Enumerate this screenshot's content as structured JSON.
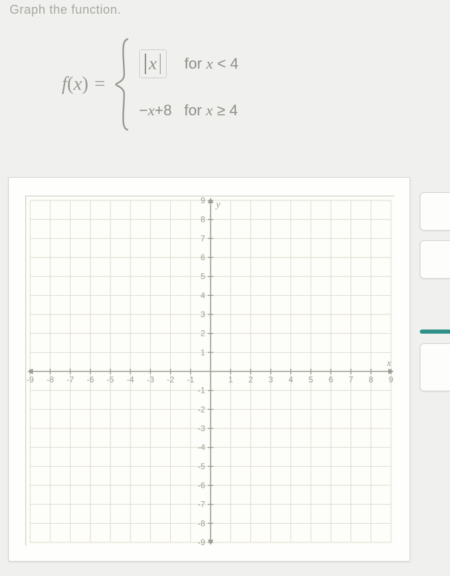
{
  "prompt": "Graph the function.",
  "equation": {
    "lhs_f": "f",
    "lhs_var": "x",
    "eq": "=",
    "case1": {
      "abs_var": "x",
      "cond_prefix": "for ",
      "cond_var": "x",
      "cond_op": " < ",
      "cond_val": "4"
    },
    "case2": {
      "expr_minus": "−",
      "expr_var": "x",
      "expr_plus": "+",
      "expr_const": "8",
      "cond_prefix": "for ",
      "cond_var": "x",
      "cond_op": " ≥ ",
      "cond_val": "4"
    }
  },
  "chart": {
    "type": "empty_cartesian_grid",
    "xlim": [
      -9,
      9
    ],
    "ylim": [
      -9,
      9
    ],
    "xtick_step": 1,
    "ytick_step": 1,
    "x_label": "x",
    "y_label": "y",
    "background_color": "#fdfdf9",
    "grid_color": "#dedbd0",
    "axis_color": "#9c9c94",
    "tick_label_color": "#9c9c94",
    "tick_fontsize": 12,
    "axis_label_fontsize": 14,
    "border_color": "#c8c8c0",
    "x_ticks": [
      -9,
      -8,
      -7,
      -6,
      -5,
      -4,
      -3,
      -2,
      -1,
      1,
      2,
      3,
      4,
      5,
      6,
      7,
      8,
      9
    ],
    "y_ticks": [
      -9,
      -8,
      -7,
      -6,
      -5,
      -4,
      -3,
      -2,
      -1,
      1,
      2,
      3,
      4,
      5,
      6,
      7,
      8,
      9
    ]
  },
  "panel": {
    "panel_bg": "#fefefc",
    "panel_border": "#d7d7cf"
  },
  "side": {
    "btn_bg": "#fdfdfb",
    "accent": "#2f8f89"
  }
}
